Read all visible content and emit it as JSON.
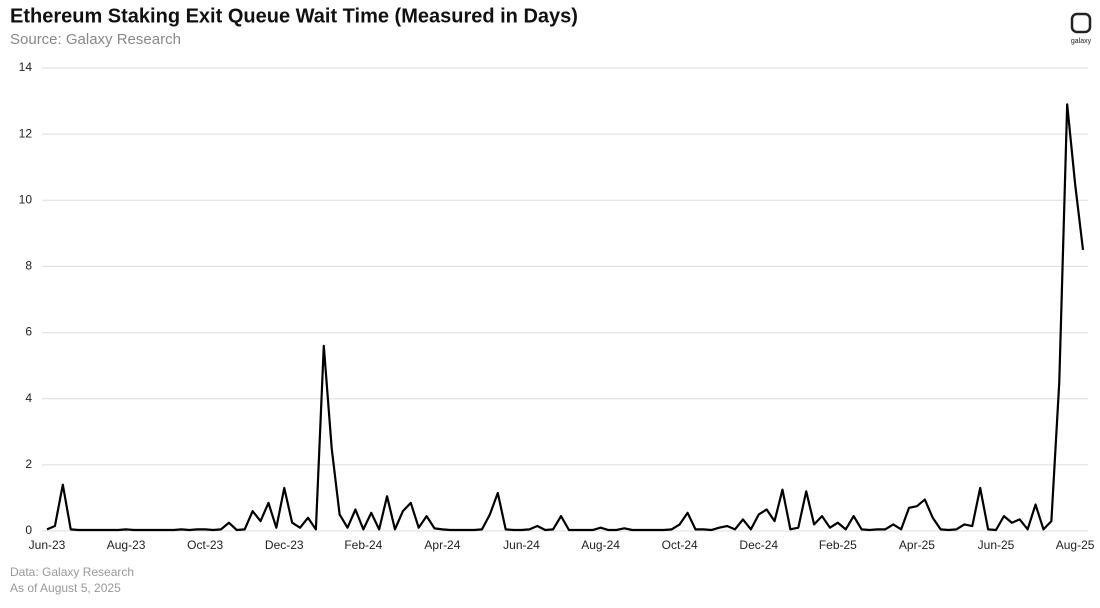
{
  "chart_data": {
    "type": "line",
    "title": "Ethereum Staking Exit Queue Wait Time (Measured in Days)",
    "subtitle": "Source: Galaxy Research",
    "logo_text": "galaxy",
    "footnotes": [
      "Data: Galaxy Research",
      "As of August 5, 2025"
    ],
    "categories": [
      "Jun-23",
      null,
      null,
      null,
      null,
      null,
      null,
      null,
      null,
      null,
      "Aug-23",
      null,
      null,
      null,
      null,
      null,
      null,
      null,
      null,
      null,
      "Oct-23",
      null,
      null,
      null,
      null,
      null,
      null,
      null,
      null,
      null,
      "Dec-23",
      null,
      null,
      null,
      null,
      null,
      null,
      null,
      null,
      null,
      "Feb-24",
      null,
      null,
      null,
      null,
      null,
      null,
      null,
      null,
      null,
      "Apr-24",
      null,
      null,
      null,
      null,
      null,
      null,
      null,
      null,
      null,
      "Jun-24",
      null,
      null,
      null,
      null,
      null,
      null,
      null,
      null,
      null,
      "Aug-24",
      null,
      null,
      null,
      null,
      null,
      null,
      null,
      null,
      null,
      "Oct-24",
      null,
      null,
      null,
      null,
      null,
      null,
      null,
      null,
      null,
      "Dec-24",
      null,
      null,
      null,
      null,
      null,
      null,
      null,
      null,
      null,
      "Feb-25",
      null,
      null,
      null,
      null,
      null,
      null,
      null,
      null,
      null,
      "Apr-25",
      null,
      null,
      null,
      null,
      null,
      null,
      null,
      null,
      null,
      "Jun-25",
      null,
      null,
      null,
      null,
      null,
      null,
      null,
      null,
      null,
      "Aug-25",
      null
    ],
    "values": [
      0.05,
      0.15,
      1.4,
      0.05,
      0.03,
      0.03,
      0.03,
      0.03,
      0.03,
      0.03,
      0.05,
      0.03,
      0.03,
      0.03,
      0.03,
      0.03,
      0.03,
      0.05,
      0.03,
      0.05,
      0.05,
      0.03,
      0.05,
      0.25,
      0.03,
      0.05,
      0.6,
      0.3,
      0.85,
      0.1,
      1.3,
      0.25,
      0.1,
      0.4,
      0.05,
      5.6,
      2.5,
      0.5,
      0.1,
      0.65,
      0.05,
      0.55,
      0.05,
      1.05,
      0.05,
      0.6,
      0.85,
      0.1,
      0.45,
      0.08,
      0.05,
      0.03,
      0.03,
      0.03,
      0.03,
      0.05,
      0.5,
      1.15,
      0.05,
      0.03,
      0.03,
      0.05,
      0.15,
      0.03,
      0.05,
      0.45,
      0.03,
      0.03,
      0.03,
      0.03,
      0.1,
      0.03,
      0.03,
      0.08,
      0.03,
      0.03,
      0.03,
      0.03,
      0.03,
      0.05,
      0.2,
      0.55,
      0.05,
      0.05,
      0.03,
      0.1,
      0.15,
      0.05,
      0.35,
      0.05,
      0.5,
      0.65,
      0.3,
      1.25,
      0.05,
      0.1,
      1.2,
      0.2,
      0.45,
      0.1,
      0.25,
      0.05,
      0.45,
      0.05,
      0.03,
      0.05,
      0.05,
      0.2,
      0.05,
      0.7,
      0.75,
      0.95,
      0.4,
      0.05,
      0.03,
      0.05,
      0.2,
      0.15,
      1.3,
      0.05,
      0.03,
      0.45,
      0.25,
      0.35,
      0.05,
      0.8,
      0.05,
      0.3,
      4.5,
      12.9,
      10.5,
      8.5
    ],
    "color": "#000000",
    "ylim": [
      0,
      14
    ],
    "yticks": [
      0,
      2,
      4,
      6,
      8,
      10,
      12,
      14
    ],
    "grid": true
  }
}
